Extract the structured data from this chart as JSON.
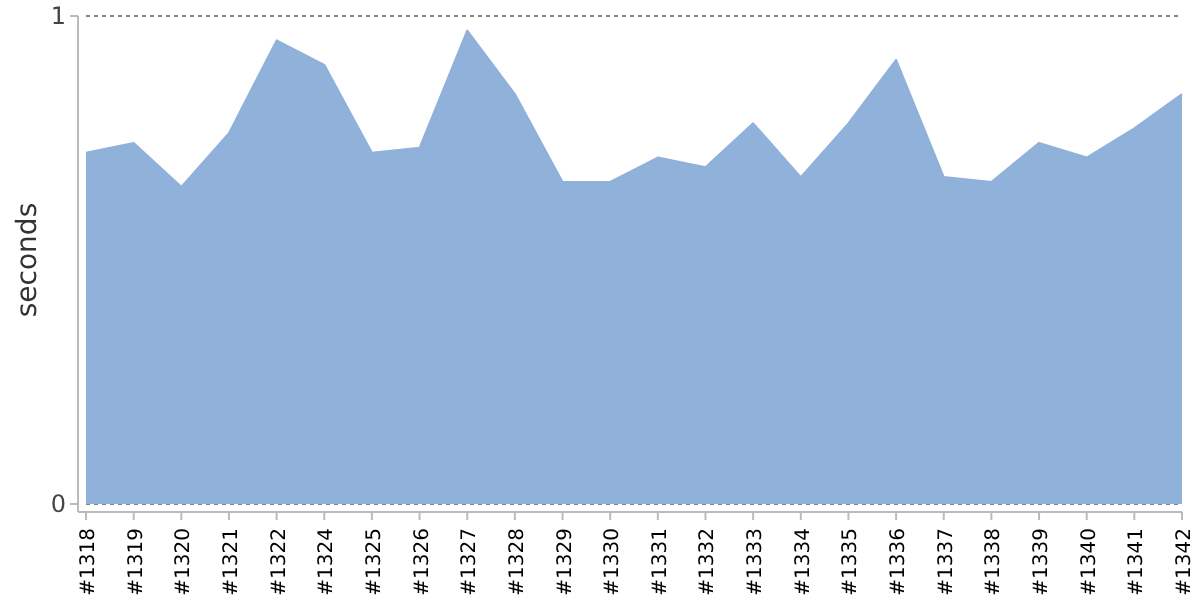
{
  "chart_data": {
    "type": "area",
    "ylabel": "seconds",
    "categories": [
      "#1318",
      "#1319",
      "#1320",
      "#1321",
      "#1322",
      "#1324",
      "#1325",
      "#1326",
      "#1327",
      "#1328",
      "#1329",
      "#1330",
      "#1331",
      "#1332",
      "#1333",
      "#1334",
      "#1335",
      "#1336",
      "#1337",
      "#1338",
      "#1339",
      "#1340",
      "#1341",
      "#1342"
    ],
    "series": [
      {
        "color": "#8fb1da",
        "values": [
          0.72,
          0.74,
          0.65,
          0.76,
          0.95,
          0.9,
          0.72,
          0.73,
          0.97,
          0.84,
          0.66,
          0.66,
          0.71,
          0.69,
          0.78,
          0.67,
          0.78,
          0.91,
          0.67,
          0.66,
          0.74,
          0.71,
          0.77,
          0.84
        ]
      }
    ],
    "ylim": [
      0,
      1
    ],
    "yticks": [
      0,
      1
    ],
    "grid": "y"
  }
}
